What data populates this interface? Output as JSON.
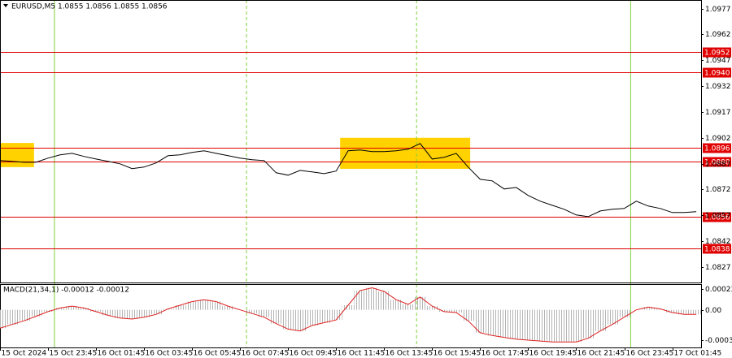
{
  "chart_data": [
    {
      "type": "line",
      "title": "EURUSD,M5 1.0855 1.0856 1.0855 1.0856",
      "color": "#000000",
      "x": [
        0,
        6,
        12,
        18,
        24,
        30,
        36,
        42,
        48,
        54,
        60,
        66,
        72,
        78,
        84,
        90,
        96,
        102,
        108,
        114,
        120,
        126,
        132,
        138,
        144,
        150,
        156,
        162,
        168,
        174,
        180,
        186,
        192,
        198,
        204,
        210,
        216,
        222,
        228,
        234,
        240,
        246,
        252,
        258,
        264,
        270,
        276,
        282,
        288,
        294,
        300,
        306,
        312,
        318,
        324,
        330,
        336,
        342,
        348
      ],
      "values": [
        1.08888,
        1.08883,
        1.08878,
        1.08878,
        1.08902,
        1.08921,
        1.0893,
        1.08912,
        1.08897,
        1.08883,
        1.08869,
        1.08841,
        1.0885,
        1.08874,
        1.08916,
        1.08921,
        1.08935,
        1.08945,
        1.0893,
        1.08916,
        1.08902,
        1.08893,
        1.08888,
        1.08817,
        1.08803,
        1.08831,
        1.08822,
        1.08812,
        1.08827,
        1.08945,
        1.08949,
        1.0894,
        1.0894,
        1.08945,
        1.08954,
        1.08987,
        1.08897,
        1.08907,
        1.0893,
        1.0885,
        1.08779,
        1.0877,
        1.08723,
        1.08732,
        1.08685,
        1.08652,
        1.08628,
        1.08605,
        1.08572,
        1.08562,
        1.08595,
        1.08605,
        1.0861,
        1.08652,
        1.08624,
        1.0861,
        1.08586,
        1.08586,
        1.08591
      ],
      "xlim": [
        0,
        350
      ],
      "xticks": [
        {
          "value": 0,
          "label": "15 Oct 2024"
        },
        {
          "value": 24,
          "label": "15 Oct 23:45"
        },
        {
          "value": 48,
          "label": "16 Oct 01:45"
        },
        {
          "value": 72,
          "label": "16 Oct 03:45"
        },
        {
          "value": 96,
          "label": "16 Oct 05:45"
        },
        {
          "value": 120,
          "label": "16 Oct 07:45"
        },
        {
          "value": 144,
          "label": "16 Oct 09:45"
        },
        {
          "value": 168,
          "label": "16 Oct 11:45"
        },
        {
          "value": 192,
          "label": "16 Oct 13:45"
        },
        {
          "value": 216,
          "label": "16 Oct 15:45"
        },
        {
          "value": 240,
          "label": "16 Oct 17:45"
        },
        {
          "value": 264,
          "label": "16 Oct 19:45"
        },
        {
          "value": 288,
          "label": "16 Oct 21:45"
        },
        {
          "value": 312,
          "label": "16 Oct 23:45"
        },
        {
          "value": 336,
          "label": "17 Oct 01:45"
        }
      ],
      "ylim": [
        1.0818,
        1.0982
      ],
      "yticks": [
        1.0977,
        1.0962,
        1.0947,
        1.0932,
        1.0917,
        1.0902,
        1.0887,
        1.0872,
        1.0857,
        1.0842,
        1.0827
      ],
      "levels": [
        1.0952,
        {
          "value": 1.094,
          "label": "1.0940"
        },
        1.0896,
        1.0888,
        1.0856,
        1.0838
      ],
      "level_color": "#e00000",
      "zones": [
        {
          "x": [
            0,
            17
          ],
          "y": [
            1.0885,
            1.0899
          ]
        },
        {
          "x": [
            170,
            235
          ],
          "y": [
            1.0884,
            1.0902
          ]
        }
      ],
      "zone_color": "#ffd200",
      "vlines": [
        {
          "x": 27,
          "style": "solid"
        },
        {
          "x": 123,
          "style": "dashed"
        },
        {
          "x": 208,
          "style": "dashed"
        },
        {
          "x": 315,
          "style": "solid"
        }
      ],
      "vline_color": "#7fd13b"
    },
    {
      "type": "macd",
      "title": "MACD(21,34,1) -0.00012 -0.00012",
      "color": "#e02020",
      "bar_color": "#b4b4b4",
      "values": [
        -0.0002,
        -0.00016,
        -0.00012,
        -7e-05,
        -2e-05,
        2e-05,
        4e-05,
        2e-05,
        -2e-05,
        -6e-05,
        -9e-05,
        -0.0001,
        -8e-05,
        -5e-05,
        1e-05,
        5e-05,
        9e-05,
        0.00011,
        9e-05,
        4e-05,
        0,
        -4e-05,
        -8e-05,
        -0.00015,
        -0.00021,
        -0.00023,
        -0.00017,
        -0.00014,
        -0.00011,
        5e-05,
        0.00021,
        0.00024,
        0.0002,
        0.00011,
        6e-05,
        0.00014,
        4e-05,
        -2e-05,
        -3e-05,
        -0.00012,
        -0.00025,
        -0.00028,
        -0.0003,
        -0.00032,
        -0.00033,
        -0.00034,
        -0.00035,
        -0.00035,
        -0.00035,
        -0.00031,
        -0.00023,
        -0.00016,
        -8e-05,
        0,
        3e-05,
        1e-05,
        -3e-05,
        -5e-05,
        -5e-05
      ],
      "ylim": [
        -0.00041,
        0.00028
      ],
      "yticks": [
        0.00023,
        {
          "value": 0,
          "label": "0.00"
        },
        -0.00033
      ]
    }
  ]
}
